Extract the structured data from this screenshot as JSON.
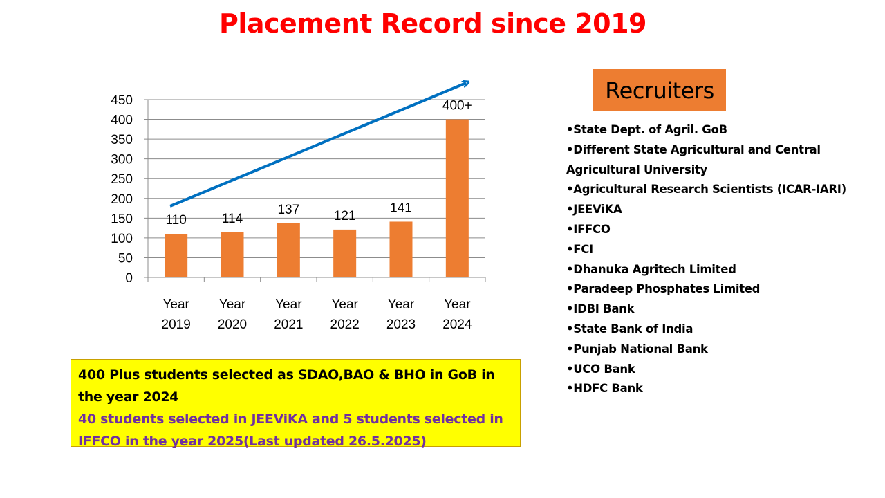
{
  "title": "Placement Record since 2019",
  "chart_data": {
    "type": "bar",
    "categories": [
      [
        "Year",
        "2019"
      ],
      [
        "Year",
        "2020"
      ],
      [
        "Year",
        "2021"
      ],
      [
        "Year",
        "2022"
      ],
      [
        "Year",
        "2023"
      ],
      [
        "Year",
        "2024"
      ]
    ],
    "values": [
      110,
      114,
      137,
      121,
      141,
      400
    ],
    "data_labels": [
      "110",
      "114",
      "137",
      "121",
      "141",
      "400+"
    ],
    "yticks": [
      "0",
      "50",
      "100",
      "150",
      "200",
      "250",
      "300",
      "350",
      "400",
      "450"
    ],
    "ylim": [
      0,
      450
    ],
    "grid": true,
    "bar_color": "#ed7d31",
    "trend_arrow_color": "#0070c0"
  },
  "recruiters": {
    "title": "Recruiters",
    "box_color": "#ed7d31",
    "items": [
      "•State Dept. of Agril. GoB",
      "•Different State Agricultural and Central Agricultural University",
      "•Agricultural Research Scientists (ICAR-IARI)",
      "•JEEViKA",
      "•IFFCO",
      "•FCI",
      "•Dhanuka Agritech Limited",
      "•Paradeep Phosphates Limited",
      "•IDBI Bank",
      "•State Bank of India",
      "•Punjab National Bank",
      "•UCO Bank",
      "•HDFC Bank"
    ]
  },
  "summary": {
    "line1": "400 Plus students selected as SDAO,BAO & BHO in GoB in the year 2024",
    "line2": "40 students selected in JEEViKA and  5 students selected in IFFCO in the year  2025(Last updated 26.5.2025)",
    "box_color": "#ffff00",
    "line2_color": "#7030a0"
  }
}
